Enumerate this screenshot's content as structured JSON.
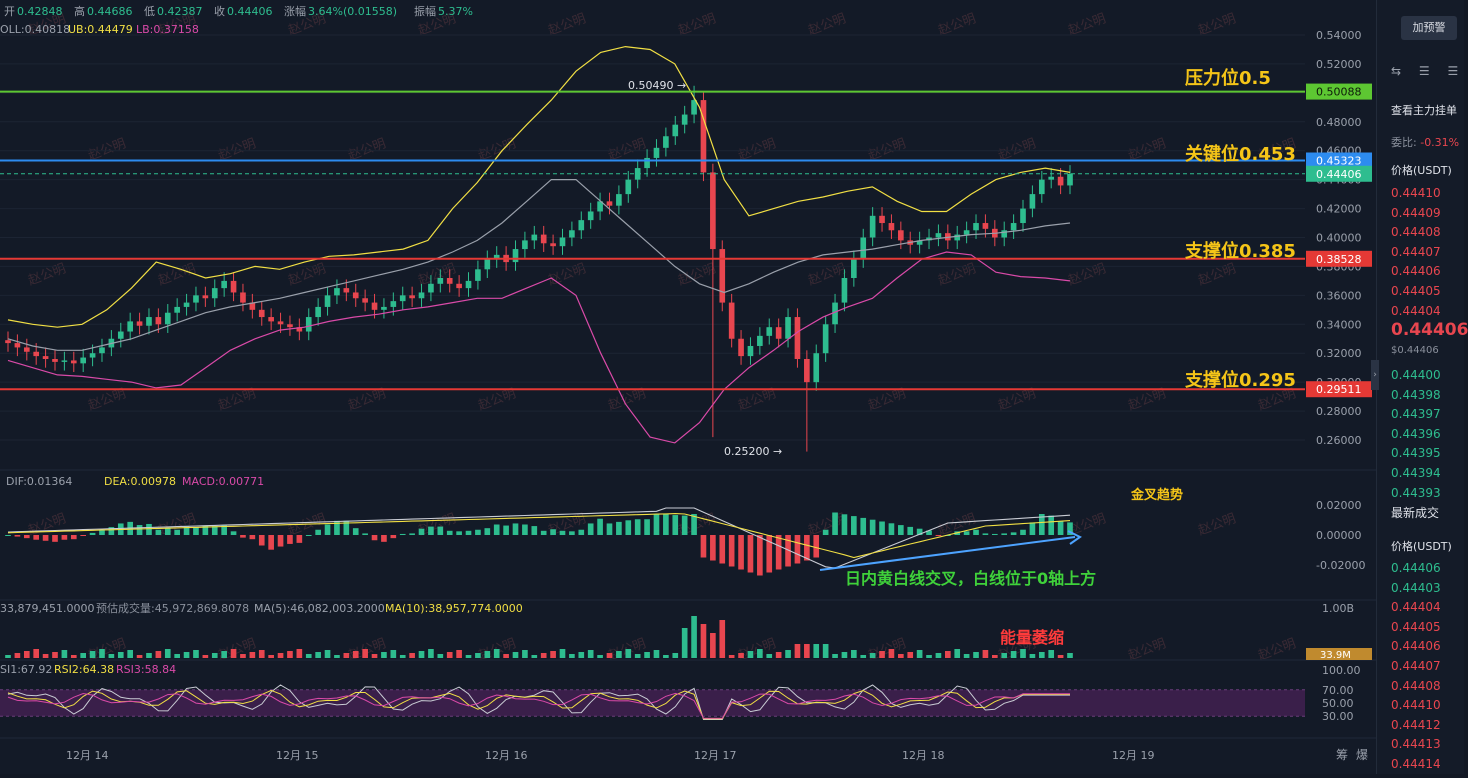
{
  "colors": {
    "up": "#2ebd8f",
    "down": "#e8464f",
    "boll_mid": "#9aa0ab",
    "boll_up": "#f1df44",
    "boll_low": "#d94aa8",
    "support": "#e53935",
    "resistance": "#5dc732",
    "key": "#2d8cf0",
    "label_yellow": "#f5c518",
    "volume": "#e9c46a"
  },
  "header": {
    "line1": [
      {
        "label": "开",
        "value": "0.42848"
      },
      {
        "label": "高",
        "value": "0.44686"
      },
      {
        "label": "低",
        "value": "0.42387"
      },
      {
        "label": "收",
        "value": "0.44406"
      },
      {
        "label": "涨幅",
        "value": "3.64%(0.01558)"
      },
      {
        "label": "振幅",
        "value": "5.37%"
      }
    ],
    "line2": {
      "boll": "OLL:0.40818",
      "ub": "UB:0.44479",
      "lb": "LB:0.37158"
    }
  },
  "price_axis": {
    "ticks": [
      "0.54000",
      "0.52000",
      "0.50000",
      "0.48000",
      "0.46000",
      "0.44000",
      "0.42000",
      "0.40000",
      "0.38000",
      "0.36000",
      "0.34000",
      "0.32000",
      "0.30000",
      "0.28000",
      "0.26000"
    ]
  },
  "level_tags": [
    {
      "text": "0.50088",
      "bg": "#5dc732",
      "fg": "#0d1a0a",
      "line_price": 0.50088,
      "line_color": "#5dc732"
    },
    {
      "text": "0.45323",
      "bg": "#2d8cf0",
      "fg": "#ffffff",
      "line_price": 0.45323,
      "line_color": "#2d8cf0"
    },
    {
      "text": "0.44406",
      "bg": "#2ebd8f",
      "fg": "#ffffff",
      "line_price": 0.44406,
      "line_color": "#2ebd8f"
    },
    {
      "text": "0.38528",
      "bg": "#e53935",
      "fg": "#ffffff",
      "line_price": 0.38528,
      "line_color": "#e53935"
    },
    {
      "text": "0.29511",
      "bg": "#e53935",
      "fg": "#ffffff",
      "line_price": 0.29511,
      "line_color": "#e53935"
    }
  ],
  "annotations": {
    "resistance": "压力位0.5",
    "key": "关键位0.453",
    "support1": "支撑位0.385",
    "support2": "支撑位0.295",
    "high_label": "0.50490 →",
    "low_label": "0.25200 →",
    "golden_cross": "金叉趋势",
    "macd_note": "日内黄白线交叉，白线位于0轴上方",
    "volume_note": "能量萎缩"
  },
  "macd": {
    "dif": "DIF:0.01364",
    "dea": "DEA:0.00978",
    "macd": "MACD:0.00771",
    "ticks": [
      "0.02000",
      "0.00000",
      "-0.02000"
    ]
  },
  "volume": {
    "vol": "33,879,451.0000",
    "est": "预估成交量:45,972,869.8078",
    "ma5": "MA(5):46,082,003.2000",
    "ma10": "MA(10):38,957,774.0000",
    "ticks": [
      "1.00B"
    ],
    "tag": "33.9M"
  },
  "rsi": {
    "rsi1": "SI1:67.92",
    "rsi2": "RSI2:64.38",
    "rsi3": "RSI3:58.84",
    "ticks": [
      "100.00",
      "70.00",
      "50.00",
      "30.00"
    ]
  },
  "date_axis": [
    "12月 14",
    "12月 15",
    "12月 16",
    "12月 17",
    "12月 18",
    "12月 19"
  ],
  "bottom_right": [
    "筹",
    "爆"
  ],
  "watermark": "赵公明",
  "right_panel": {
    "alert_button": "加预警",
    "orderbook_title": "查看主力挂单",
    "ratio_label": "委比:",
    "ratio_value": "-0.31%",
    "price_header": "价格(USDT)",
    "asks": [
      "0.44410",
      "0.44409",
      "0.44408",
      "0.44407",
      "0.44406",
      "0.44405",
      "0.44404"
    ],
    "last_price": "0.44406",
    "last_price_usd": "$0.44406",
    "bids": [
      "0.44400",
      "0.44398",
      "0.44397",
      "0.44396",
      "0.44395",
      "0.44394",
      "0.44393"
    ],
    "trades_title": "最新成交",
    "trades_header": "价格(USDT)",
    "trades": [
      {
        "p": "0.44406",
        "side": "up"
      },
      {
        "p": "0.44403",
        "side": "up"
      },
      {
        "p": "0.44404",
        "side": "down"
      },
      {
        "p": "0.44405",
        "side": "down"
      },
      {
        "p": "0.44406",
        "side": "down"
      },
      {
        "p": "0.44407",
        "side": "down"
      },
      {
        "p": "0.44408",
        "side": "down"
      },
      {
        "p": "0.44410",
        "side": "down"
      },
      {
        "p": "0.44412",
        "side": "down"
      },
      {
        "p": "0.44413",
        "side": "down"
      },
      {
        "p": "0.44414",
        "side": "down"
      }
    ]
  },
  "chart_data": {
    "type": "candlestick",
    "price_range": [
      0.24,
      0.545
    ],
    "candles_close_approx": [
      0.327,
      0.324,
      0.321,
      0.318,
      0.316,
      0.314,
      0.315,
      0.313,
      0.317,
      0.32,
      0.324,
      0.33,
      0.335,
      0.342,
      0.339,
      0.345,
      0.34,
      0.348,
      0.352,
      0.355,
      0.36,
      0.358,
      0.365,
      0.37,
      0.362,
      0.355,
      0.35,
      0.345,
      0.342,
      0.34,
      0.338,
      0.335,
      0.345,
      0.352,
      0.36,
      0.365,
      0.362,
      0.358,
      0.355,
      0.35,
      0.352,
      0.356,
      0.36,
      0.358,
      0.362,
      0.368,
      0.372,
      0.368,
      0.365,
      0.37,
      0.378,
      0.385,
      0.388,
      0.383,
      0.392,
      0.398,
      0.402,
      0.396,
      0.394,
      0.4,
      0.405,
      0.412,
      0.418,
      0.425,
      0.422,
      0.43,
      0.44,
      0.448,
      0.455,
      0.462,
      0.47,
      0.478,
      0.485,
      0.495,
      0.445,
      0.392,
      0.355,
      0.33,
      0.318,
      0.325,
      0.332,
      0.338,
      0.33,
      0.345,
      0.316,
      0.3,
      0.32,
      0.34,
      0.355,
      0.372,
      0.385,
      0.4,
      0.415,
      0.41,
      0.405,
      0.398,
      0.395,
      0.398,
      0.4,
      0.403,
      0.398,
      0.402,
      0.405,
      0.41,
      0.406,
      0.4,
      0.405,
      0.41,
      0.42,
      0.43,
      0.44,
      0.442,
      0.436,
      0.444
    ],
    "boll_upper": [
      0.343,
      0.34,
      0.338,
      0.34,
      0.35,
      0.365,
      0.383,
      0.378,
      0.372,
      0.375,
      0.38,
      0.378,
      0.383,
      0.387,
      0.388,
      0.39,
      0.392,
      0.398,
      0.42,
      0.438,
      0.46,
      0.478,
      0.495,
      0.515,
      0.528,
      0.532,
      0.53,
      0.52,
      0.49,
      0.44,
      0.415,
      0.42,
      0.425,
      0.428,
      0.432,
      0.435,
      0.425,
      0.418,
      0.418,
      0.43,
      0.44,
      0.445,
      0.448,
      0.445
    ],
    "boll_mid": [
      0.33,
      0.325,
      0.322,
      0.322,
      0.326,
      0.33,
      0.336,
      0.342,
      0.348,
      0.352,
      0.355,
      0.358,
      0.362,
      0.366,
      0.37,
      0.374,
      0.378,
      0.383,
      0.39,
      0.398,
      0.41,
      0.425,
      0.44,
      0.44,
      0.425,
      0.41,
      0.395,
      0.38,
      0.368,
      0.362,
      0.368,
      0.376,
      0.383,
      0.388,
      0.39,
      0.392,
      0.395,
      0.398,
      0.4,
      0.402,
      0.403,
      0.405,
      0.408,
      0.41
    ],
    "boll_lower": [
      0.315,
      0.31,
      0.305,
      0.304,
      0.302,
      0.3,
      0.296,
      0.298,
      0.31,
      0.322,
      0.33,
      0.336,
      0.338,
      0.342,
      0.345,
      0.347,
      0.35,
      0.352,
      0.355,
      0.358,
      0.358,
      0.365,
      0.372,
      0.36,
      0.32,
      0.285,
      0.262,
      0.258,
      0.272,
      0.295,
      0.31,
      0.322,
      0.335,
      0.345,
      0.352,
      0.358,
      0.372,
      0.385,
      0.39,
      0.388,
      0.376,
      0.373,
      0.372,
      0.37
    ]
  }
}
